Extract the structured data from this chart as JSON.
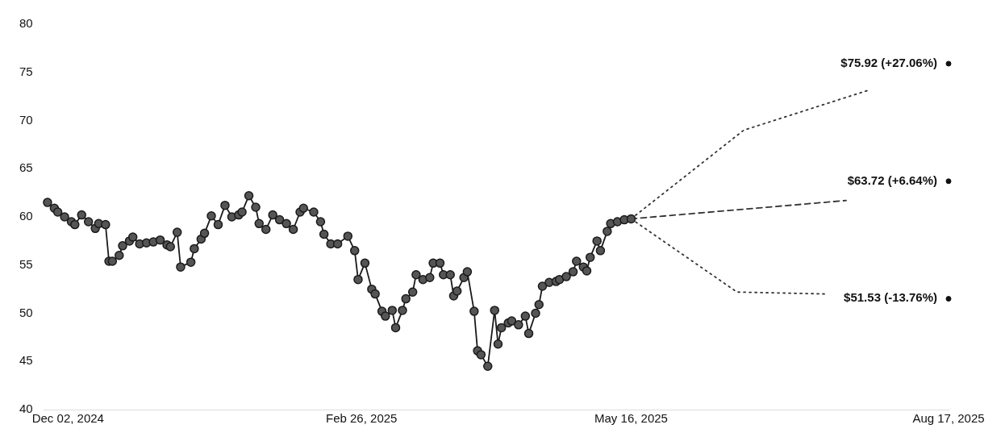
{
  "chart_data": {
    "type": "line",
    "xticks": [
      {
        "value": "2024-12-02",
        "label": "Dec 02, 2024"
      },
      {
        "value": "2025-02-26",
        "label": "Feb 26, 2025"
      },
      {
        "value": "2025-05-16",
        "label": "May 16, 2025"
      },
      {
        "value": "2025-08-17",
        "label": "Aug 17, 2025"
      }
    ],
    "xlim": [
      "2024-11-25",
      "2025-08-17"
    ],
    "ylim": [
      40,
      80
    ],
    "yticks": [
      40,
      45,
      50,
      55,
      60,
      65,
      70,
      75,
      80
    ],
    "grid": false,
    "legend": false,
    "series": [
      {
        "color": "#1a1a1a",
        "marker": "circle",
        "line_style": "solid",
        "x": [
          "2024-11-26",
          "2024-11-28",
          "2024-11-29",
          "2024-12-01",
          "2024-12-03",
          "2024-12-04",
          "2024-12-06",
          "2024-12-08",
          "2024-12-10",
          "2024-12-11",
          "2024-12-13",
          "2024-12-14",
          "2024-12-15",
          "2024-12-17",
          "2024-12-18",
          "2024-12-20",
          "2024-12-21",
          "2024-12-23",
          "2024-12-25",
          "2024-12-27",
          "2024-12-29",
          "2024-12-31",
          "2025-01-01",
          "2025-01-03",
          "2025-01-04",
          "2025-01-07",
          "2025-01-08",
          "2025-01-10",
          "2025-01-11",
          "2025-01-13",
          "2025-01-15",
          "2025-01-17",
          "2025-01-19",
          "2025-01-21",
          "2025-01-22",
          "2025-01-24",
          "2025-01-26",
          "2025-01-27",
          "2025-01-29",
          "2025-01-31",
          "2025-02-02",
          "2025-02-04",
          "2025-02-06",
          "2025-02-08",
          "2025-02-09",
          "2025-02-12",
          "2025-02-14",
          "2025-02-15",
          "2025-02-17",
          "2025-02-19",
          "2025-02-22",
          "2025-02-24",
          "2025-02-25",
          "2025-02-27",
          "2025-03-01",
          "2025-03-02",
          "2025-03-04",
          "2025-03-05",
          "2025-03-07",
          "2025-03-08",
          "2025-03-10",
          "2025-03-11",
          "2025-03-13",
          "2025-03-14",
          "2025-03-16",
          "2025-03-18",
          "2025-03-19",
          "2025-03-21",
          "2025-03-22",
          "2025-03-24",
          "2025-03-25",
          "2025-03-26",
          "2025-03-28",
          "2025-03-29",
          "2025-03-31",
          "2025-04-01",
          "2025-04-02",
          "2025-04-04",
          "2025-04-06",
          "2025-04-07",
          "2025-04-08",
          "2025-04-10",
          "2025-04-11",
          "2025-04-13",
          "2025-04-15",
          "2025-04-16",
          "2025-04-18",
          "2025-04-19",
          "2025-04-20",
          "2025-04-22",
          "2025-04-24",
          "2025-04-25",
          "2025-04-27",
          "2025-04-29",
          "2025-04-30",
          "2025-05-02",
          "2025-05-03",
          "2025-05-04",
          "2025-05-06",
          "2025-05-07",
          "2025-05-09",
          "2025-05-10",
          "2025-05-12",
          "2025-05-14",
          "2025-05-16"
        ],
        "values": [
          61.5,
          60.9,
          60.5,
          60.0,
          59.5,
          59.2,
          60.2,
          59.5,
          58.8,
          59.3,
          59.2,
          55.4,
          55.4,
          56.0,
          57.0,
          57.5,
          57.9,
          57.2,
          57.3,
          57.4,
          57.6,
          57.1,
          56.9,
          58.4,
          54.8,
          55.3,
          56.7,
          57.7,
          58.3,
          60.1,
          59.2,
          61.2,
          60.0,
          60.2,
          60.5,
          62.2,
          61.0,
          59.3,
          58.7,
          60.2,
          59.7,
          59.3,
          58.7,
          60.5,
          60.9,
          60.5,
          59.5,
          58.2,
          57.2,
          57.2,
          58.0,
          56.5,
          53.5,
          55.2,
          52.5,
          52.0,
          50.2,
          49.7,
          50.3,
          48.5,
          50.3,
          51.5,
          52.2,
          54.0,
          53.5,
          53.7,
          55.2,
          55.2,
          54.0,
          54.0,
          51.8,
          52.3,
          53.7,
          54.3,
          50.2,
          46.1,
          45.7,
          44.5,
          50.3,
          46.8,
          48.5,
          49.0,
          49.2,
          48.8,
          49.7,
          47.9,
          50.0,
          50.9,
          52.8,
          53.2,
          53.3,
          53.5,
          53.8,
          54.3,
          55.4,
          54.8,
          54.4,
          55.8,
          57.5,
          56.5,
          58.5,
          59.3,
          59.5,
          59.7,
          59.8
        ]
      },
      {
        "type": "line",
        "color": "#333333",
        "marker": "none",
        "line_style": "dotted",
        "x": [
          "2025-05-16",
          "2025-06-18",
          "2025-07-25"
        ],
        "values": [
          59.8,
          69.0,
          73.2
        ]
      },
      {
        "type": "line",
        "color": "#333333",
        "marker": "none",
        "line_style": "dashed",
        "x": [
          "2025-05-16",
          "2025-07-18"
        ],
        "values": [
          59.8,
          61.7
        ]
      },
      {
        "type": "line",
        "color": "#333333",
        "marker": "none",
        "line_style": "dotted",
        "x": [
          "2025-05-16",
          "2025-06-16",
          "2025-07-12"
        ],
        "values": [
          59.8,
          52.2,
          52.0
        ]
      },
      {
        "type": "scatter",
        "color": "#111111",
        "marker": "circle",
        "x": [
          "2025-08-17",
          "2025-08-17",
          "2025-08-17"
        ],
        "values": [
          75.9,
          63.7,
          51.5
        ]
      }
    ],
    "annotations": [
      {
        "text": "$75.92 (+27.06%)",
        "x": "2025-08-17",
        "y": 75.92
      },
      {
        "text": "$63.72 (+6.64%)",
        "x": "2025-08-17",
        "y": 63.72
      },
      {
        "text": "$51.53 (-13.76%)",
        "x": "2025-08-17",
        "y": 51.53
      }
    ]
  }
}
